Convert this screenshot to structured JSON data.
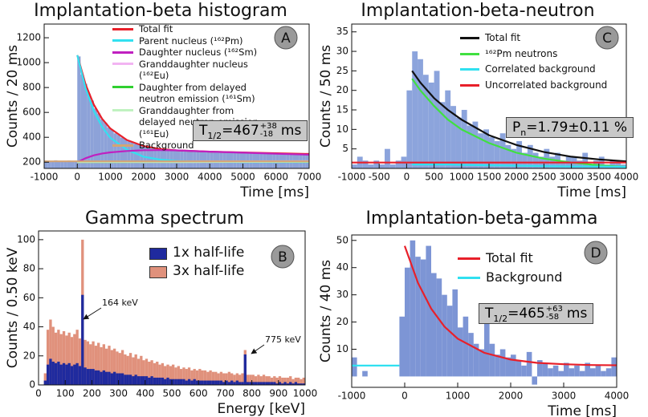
{
  "chart_data": [
    {
      "type": "histogram",
      "panel_label": "A",
      "title": "Implantation-beta histogram",
      "xlabel": "Time [ms]",
      "ylabel": "Counts / 20 ms",
      "xlim": [
        -1000,
        7000
      ],
      "ylim": [
        150,
        1310
      ],
      "xticks": [
        -1000,
        0,
        1000,
        2000,
        3000,
        4000,
        5000,
        6000,
        7000
      ],
      "yticks": [
        200,
        400,
        600,
        800,
        1000,
        1200
      ],
      "color": "#8da2d8",
      "bins": [
        -1000,
        -900,
        -800,
        -700,
        -600,
        -500,
        -400,
        -300,
        -200,
        -100,
        0,
        100,
        200,
        300,
        400,
        500,
        600,
        700,
        800,
        900,
        1000,
        1100,
        1200,
        1300,
        1400,
        1500,
        1600,
        1700,
        1800,
        1900,
        2000,
        2100,
        2200,
        2300,
        2400,
        2500,
        2600,
        2700,
        2800,
        2900,
        3000,
        3100,
        3200,
        3300,
        3400,
        3500,
        3600,
        3700,
        3800,
        3900,
        4000,
        4100,
        4200,
        4300,
        4400,
        4500,
        4600,
        4700,
        4800,
        4900,
        5000,
        5100,
        5200,
        5300,
        5400,
        5500,
        5600,
        5700,
        5800,
        5900,
        6000,
        6100,
        6200,
        6300,
        6400,
        6500,
        6600,
        6700,
        6800,
        6900,
        7000
      ],
      "counts": [
        212,
        205,
        208,
        215,
        203,
        210,
        206,
        213,
        204,
        209,
        1050,
        905,
        830,
        750,
        695,
        632,
        592,
        545,
        518,
        480,
        460,
        432,
        420,
        398,
        386,
        368,
        362,
        348,
        343,
        330,
        329,
        318,
        318,
        310,
        309,
        305,
        300,
        298,
        302,
        296,
        297,
        292,
        294,
        289,
        293,
        288,
        290,
        286,
        291,
        285,
        287,
        283,
        286,
        282,
        284,
        280,
        283,
        279,
        281,
        277,
        279,
        276,
        278,
        274,
        277,
        273,
        275,
        272,
        274,
        270,
        272,
        269,
        271,
        267,
        270,
        266,
        268,
        265,
        267,
        264
      ],
      "fits": [
        {
          "name": "Total fit",
          "color": "#e8202a",
          "x": [
            0,
            250,
            500,
            750,
            1000,
            1500,
            2000,
            2500,
            3000,
            4000,
            5000,
            6000,
            7000
          ],
          "values": [
            1060,
            825,
            662,
            548,
            470,
            378,
            330,
            306,
            295,
            285,
            278,
            272,
            266
          ]
        },
        {
          "name": "Parent nucleus (¹⁶²Pm)",
          "color": "#33e0f0",
          "x": [
            0,
            250,
            500,
            750,
            1000,
            1500,
            2000,
            2500,
            3000,
            4000,
            5000,
            6000,
            7000
          ],
          "values": [
            1060,
            793,
            610,
            483,
            395,
            301,
            244,
            221,
            210,
            202,
            200,
            200,
            200
          ]
        },
        {
          "name": "Daughter nucleus (¹⁶²Sm)",
          "color": "#c020c0",
          "x": [
            0,
            250,
            500,
            750,
            1000,
            1500,
            2000,
            2500,
            3000,
            4000,
            5000,
            6000,
            7000
          ],
          "values": [
            200,
            232,
            255,
            270,
            279,
            290,
            296,
            297,
            295,
            285,
            276,
            268,
            260
          ]
        },
        {
          "name": "Granddaughter nucleus (¹⁶²Eu)",
          "color": "#f2b4f2",
          "x": [
            0,
            3500,
            7000
          ],
          "values": [
            200,
            206,
            208
          ]
        },
        {
          "name": "Daughter from delayed neutron emission (¹⁶¹Sm)",
          "color": "#30d030",
          "x": [
            0,
            3500,
            7000
          ],
          "values": [
            200,
            202,
            202
          ]
        },
        {
          "name": "Granddaughter from delayed neutron emission (¹⁶¹Eu)",
          "color": "#c0f2c0",
          "x": [
            0,
            3500,
            7000
          ],
          "values": [
            200,
            201,
            203
          ]
        },
        {
          "name": "Background",
          "color": "#d4a474",
          "x": [
            -1000,
            7000
          ],
          "values": [
            207,
            207
          ]
        }
      ],
      "result": {
        "symbol": "T",
        "symbol_sub": "1/2",
        "text": "=467",
        "err_up": "+38",
        "err_down": "-18",
        "unit": "ms"
      }
    },
    {
      "type": "histogram",
      "panel_label": "C",
      "title": "Implantation-beta-neutron",
      "xlabel": "Time [ms]",
      "ylabel": "Counts / 50 ms",
      "xlim": [
        -1000,
        4000
      ],
      "ylim": [
        0,
        37
      ],
      "xticks": [
        -1000,
        -500,
        0,
        500,
        1000,
        1500,
        2000,
        2500,
        3000,
        3500,
        4000
      ],
      "yticks": [
        5,
        10,
        15,
        20,
        25,
        30,
        35
      ],
      "color": "#8ca4dc",
      "bins": [
        -1000,
        -900,
        -800,
        -700,
        -600,
        -500,
        -400,
        -300,
        -200,
        -100,
        0,
        100,
        200,
        300,
        400,
        500,
        600,
        700,
        800,
        900,
        1000,
        1100,
        1200,
        1300,
        1400,
        1500,
        1600,
        1700,
        1800,
        1900,
        2000,
        2100,
        2200,
        2300,
        2400,
        2500,
        2600,
        2700,
        2800,
        2900,
        3000,
        3100,
        3200,
        3300,
        3400,
        3500,
        3600,
        3700,
        3800,
        3900,
        4000
      ],
      "counts": [
        1,
        3,
        2,
        1,
        2,
        1,
        5,
        1,
        2,
        3,
        20,
        30,
        28,
        24,
        22,
        25,
        17,
        20,
        16,
        13,
        15,
        11,
        12,
        9,
        10,
        8,
        7,
        9,
        6,
        5,
        7,
        4,
        6,
        4,
        3,
        5,
        3,
        4,
        2,
        3,
        3,
        2,
        4,
        1,
        2,
        3,
        1,
        2,
        2,
        1
      ],
      "fits": [
        {
          "name": "Total fit",
          "color": "#111111",
          "x": [
            100,
            250,
            500,
            750,
            1000,
            1500,
            2000,
            2500,
            3000,
            3500,
            4000
          ],
          "values": [
            25,
            22,
            18,
            15,
            12.5,
            8.5,
            6,
            4.2,
            3,
            2.3,
            1.8
          ]
        },
        {
          "name": "¹⁶²Pm neutrons",
          "color": "#40e040",
          "x": [
            100,
            250,
            500,
            750,
            1000,
            1500,
            2000,
            2500,
            3000,
            3500,
            4000
          ],
          "values": [
            23,
            20,
            16,
            12.5,
            10,
            6.5,
            4,
            2.5,
            1.5,
            0.8,
            0.4
          ]
        },
        {
          "name": "Correlated background",
          "color": "#30e0f0",
          "x": [
            100,
            250,
            500,
            750,
            1000,
            1500,
            2000,
            2500,
            3000,
            3500,
            4000
          ],
          "values": [
            1,
            1,
            1,
            1,
            0.9,
            0.8,
            0.7,
            0.6,
            0.5,
            0.5,
            0.4
          ]
        },
        {
          "name": "Uncorrelated background",
          "color": "#e8202a",
          "x": [
            -1000,
            4000
          ],
          "values": [
            1.5,
            1.5
          ]
        }
      ],
      "result": {
        "symbol": "P",
        "symbol_sub": "n",
        "text": "=1.79±0.11 %"
      }
    },
    {
      "type": "histogram",
      "panel_label": "B",
      "title": "Gamma spectrum",
      "xlabel": "Energy [keV]",
      "ylabel": "Counts / 0.50 keV",
      "xlim": [
        0,
        1000
      ],
      "ylim": [
        0,
        106
      ],
      "xticks": [
        0,
        100,
        200,
        300,
        400,
        500,
        600,
        700,
        800,
        900,
        1000
      ],
      "yticks": [
        0,
        20,
        40,
        60,
        80,
        100
      ],
      "bins": [
        0,
        10,
        20,
        30,
        40,
        50,
        60,
        70,
        80,
        90,
        100,
        110,
        120,
        130,
        140,
        150,
        160,
        170,
        180,
        190,
        200,
        210,
        220,
        230,
        240,
        250,
        260,
        270,
        280,
        290,
        300,
        310,
        320,
        330,
        340,
        350,
        360,
        370,
        380,
        390,
        400,
        410,
        420,
        430,
        440,
        450,
        460,
        470,
        480,
        490,
        500,
        510,
        520,
        530,
        540,
        550,
        560,
        570,
        580,
        590,
        600,
        610,
        620,
        630,
        640,
        650,
        660,
        670,
        680,
        690,
        700,
        710,
        720,
        730,
        740,
        750,
        760,
        770,
        780,
        790,
        800,
        810,
        820,
        830,
        840,
        850,
        860,
        870,
        880,
        890,
        900,
        910,
        920,
        930,
        940,
        950,
        960,
        970,
        980,
        990,
        1000
      ],
      "series": [
        {
          "name": "1x half-life",
          "color": "#1f2a9e",
          "values": [
            0,
            0,
            3,
            14,
            18,
            16,
            15,
            16,
            14,
            15,
            14,
            15,
            13,
            14,
            15,
            13,
            62,
            12,
            11,
            11,
            11,
            10,
            10,
            9,
            10,
            9,
            9,
            8,
            9,
            8,
            8,
            8,
            7,
            7,
            7,
            6,
            7,
            6,
            6,
            6,
            6,
            5,
            6,
            5,
            5,
            5,
            5,
            4,
            5,
            4,
            4,
            4,
            4,
            4,
            4,
            3,
            4,
            3,
            4,
            3,
            3,
            3,
            3,
            3,
            3,
            3,
            3,
            3,
            3,
            2,
            3,
            2,
            3,
            2,
            3,
            2,
            2,
            21,
            2,
            2,
            2,
            2,
            2,
            2,
            2,
            2,
            2,
            2,
            2,
            1,
            2,
            1,
            2,
            1,
            2,
            1,
            2,
            1,
            1,
            1
          ]
        },
        {
          "name": "3x half-life",
          "color": "#e0917c",
          "values": [
            0,
            0,
            8,
            38,
            45,
            40,
            36,
            38,
            35,
            37,
            34,
            36,
            33,
            35,
            38,
            32,
            100,
            31,
            30,
            28,
            30,
            27,
            29,
            26,
            28,
            25,
            27,
            24,
            25,
            23,
            22,
            24,
            21,
            20,
            22,
            19,
            21,
            18,
            20,
            17,
            18,
            16,
            17,
            15,
            16,
            14,
            15,
            13,
            14,
            13,
            14,
            12,
            13,
            11,
            12,
            11,
            12,
            10,
            11,
            10,
            11,
            10,
            10,
            9,
            10,
            9,
            9,
            8,
            9,
            8,
            8,
            9,
            8,
            7,
            8,
            7,
            8,
            24,
            7,
            7,
            7,
            6,
            7,
            6,
            7,
            6,
            6,
            5,
            6,
            5,
            6,
            5,
            5,
            5,
            6,
            4,
            5,
            5,
            4,
            5
          ]
        }
      ],
      "annotations": [
        {
          "text": "164 keV"
        },
        {
          "text": "775 keV"
        }
      ]
    },
    {
      "type": "histogram",
      "panel_label": "D",
      "title": "Implantation-beta-gamma",
      "xlabel": "Time [ms]",
      "ylabel": "Counts / 40 ms",
      "xlim": [
        -1000,
        4000
      ],
      "ylim": [
        -4,
        52
      ],
      "xticks": [
        -1000,
        0,
        1000,
        2000,
        3000,
        4000
      ],
      "yticks": [
        10,
        20,
        30,
        40,
        50
      ],
      "color": "#7d95d5",
      "bins": [
        -1000,
        -900,
        -800,
        -700,
        -600,
        -500,
        -400,
        -300,
        -200,
        -100,
        0,
        100,
        200,
        300,
        400,
        500,
        600,
        700,
        800,
        900,
        1000,
        1100,
        1200,
        1300,
        1400,
        1500,
        1600,
        1700,
        1800,
        1900,
        2000,
        2100,
        2200,
        2300,
        2400,
        2500,
        2600,
        2700,
        2800,
        2900,
        3000,
        3100,
        3200,
        3300,
        3400,
        3500,
        3600,
        3700,
        3800,
        3900,
        4000
      ],
      "counts": [
        7,
        0,
        2,
        0,
        0,
        0,
        0,
        0,
        0,
        22,
        40,
        50,
        44,
        43,
        48,
        38,
        36,
        30,
        26,
        32,
        18,
        22,
        16,
        12,
        10,
        20,
        12,
        8,
        10,
        7,
        8,
        6,
        4,
        9,
        -3,
        6,
        5,
        3,
        4,
        2,
        5,
        3,
        4,
        2,
        5,
        3,
        4,
        2,
        3,
        7
      ],
      "fits": [
        {
          "name": "Total fit",
          "color": "#e8202a",
          "x": [
            0,
            250,
            500,
            750,
            1000,
            1500,
            2000,
            2500,
            3000,
            3500,
            4000
          ],
          "values": [
            48,
            34.4,
            24.9,
            18.3,
            13.9,
            8.7,
            6.2,
            5.0,
            4.5,
            4.2,
            4.1
          ]
        },
        {
          "name": "Background",
          "color": "#30e0f0",
          "x": [
            -1000,
            -100
          ],
          "values": [
            4,
            4
          ]
        }
      ],
      "result": {
        "symbol": "T",
        "symbol_sub": "1/2",
        "text": "=465",
        "err_up": "+63",
        "err_down": "-58",
        "unit": "ms"
      }
    }
  ]
}
